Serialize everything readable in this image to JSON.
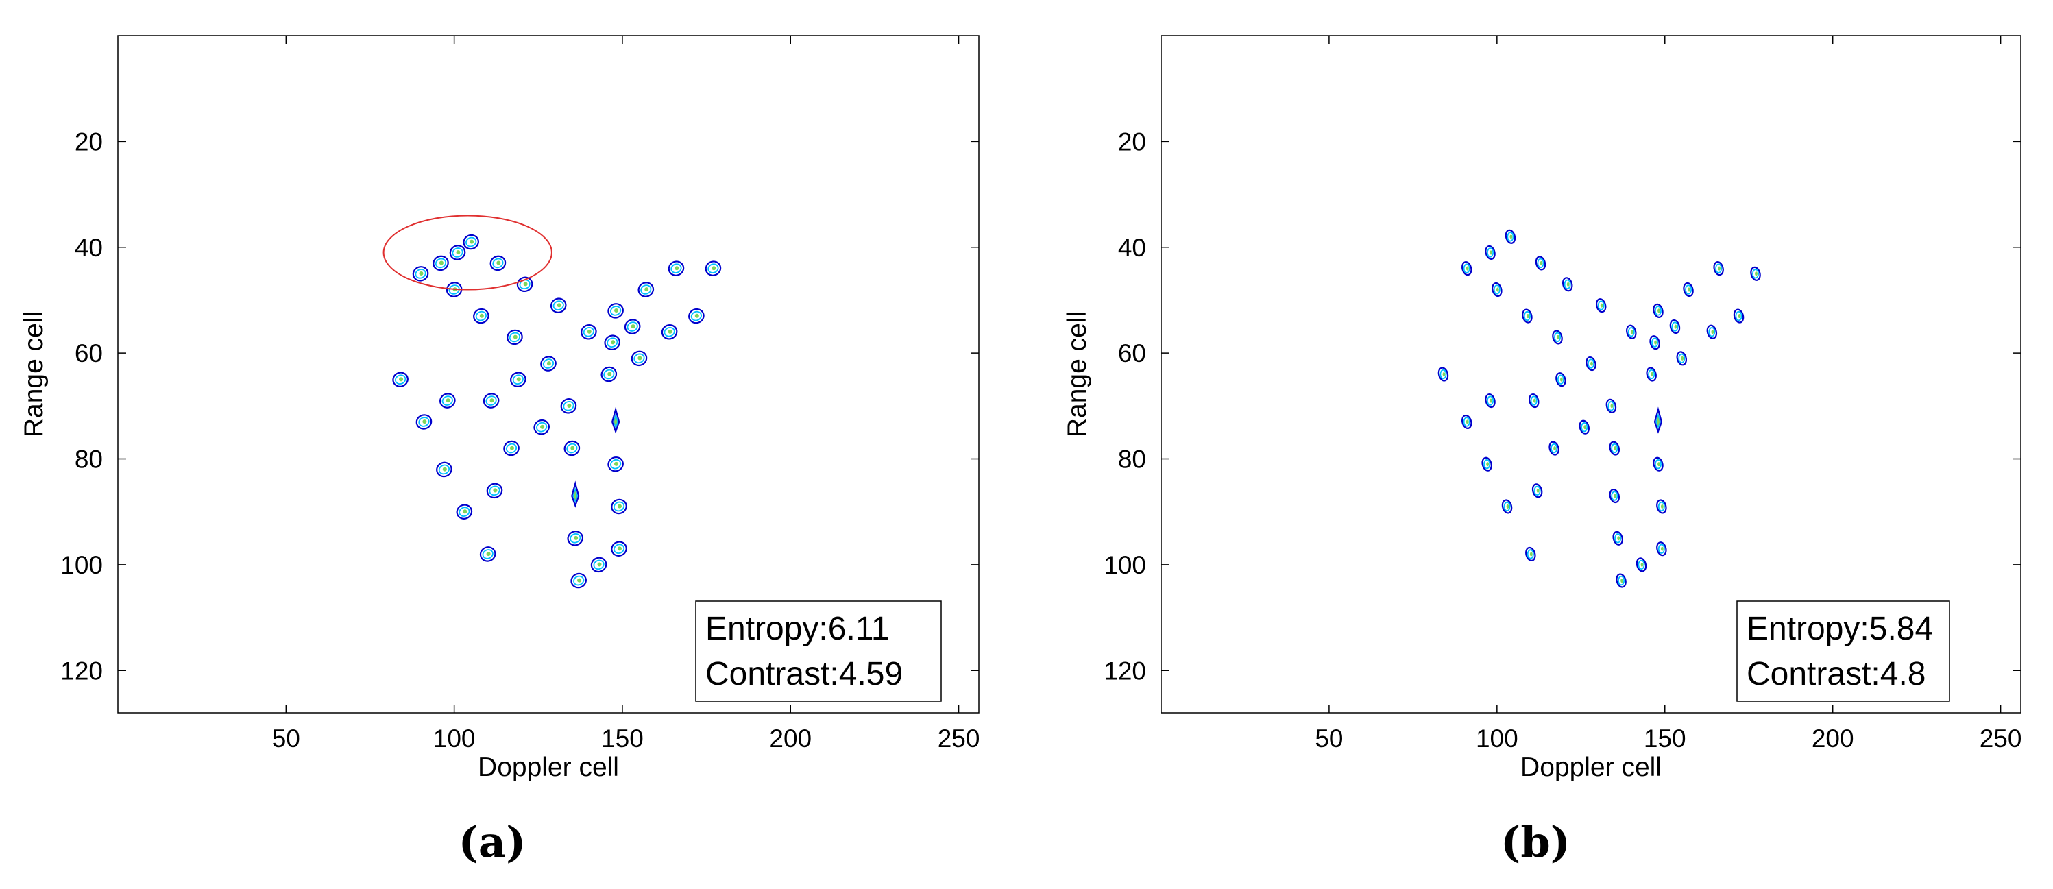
{
  "chart_data": [
    {
      "type": "scatter",
      "panel_label": "(a)",
      "xlabel": "Doppler cell",
      "ylabel": "Range cell",
      "xlim": [
        0,
        256
      ],
      "ylim": [
        128,
        0
      ],
      "xticks": [
        50,
        100,
        150,
        200,
        250
      ],
      "yticks": [
        20,
        40,
        60,
        80,
        100,
        120
      ],
      "y_axis_inverted": true,
      "grid": false,
      "contour_colors": [
        "#0000cc",
        "#00bfff",
        "#7fd65a"
      ],
      "annotation_lines": [
        "Entropy:6.11",
        "Contrast:4.59"
      ],
      "annotation_location": "bottom-right",
      "highlight_ellipse": {
        "center": [
          104,
          41
        ],
        "rx": 25,
        "ry": 7,
        "color": "#e03030"
      },
      "scatterers": [
        {
          "x": 90,
          "y": 45,
          "kind": "smear"
        },
        {
          "x": 96,
          "y": 43,
          "kind": "smear"
        },
        {
          "x": 101,
          "y": 41,
          "kind": "smear"
        },
        {
          "x": 105,
          "y": 39,
          "kind": "smear"
        },
        {
          "x": 113,
          "y": 43,
          "kind": "smear"
        },
        {
          "x": 100,
          "y": 48,
          "kind": "smear"
        },
        {
          "x": 108,
          "y": 53,
          "kind": "smear"
        },
        {
          "x": 121,
          "y": 47,
          "kind": "smear"
        },
        {
          "x": 131,
          "y": 51,
          "kind": "smear"
        },
        {
          "x": 118,
          "y": 57,
          "kind": "smear"
        },
        {
          "x": 140,
          "y": 56,
          "kind": "smear"
        },
        {
          "x": 148,
          "y": 52,
          "kind": "smear"
        },
        {
          "x": 157,
          "y": 48,
          "kind": "smear"
        },
        {
          "x": 166,
          "y": 44,
          "kind": "smear"
        },
        {
          "x": 177,
          "y": 44,
          "kind": "smear"
        },
        {
          "x": 128,
          "y": 62,
          "kind": "smear"
        },
        {
          "x": 147,
          "y": 58,
          "kind": "smear"
        },
        {
          "x": 153,
          "y": 55,
          "kind": "smear"
        },
        {
          "x": 164,
          "y": 56,
          "kind": "smear"
        },
        {
          "x": 172,
          "y": 53,
          "kind": "smear"
        },
        {
          "x": 155,
          "y": 61,
          "kind": "smear"
        },
        {
          "x": 84,
          "y": 65,
          "kind": "smear"
        },
        {
          "x": 119,
          "y": 65,
          "kind": "smear"
        },
        {
          "x": 146,
          "y": 64,
          "kind": "smear"
        },
        {
          "x": 98,
          "y": 69,
          "kind": "smear"
        },
        {
          "x": 111,
          "y": 69,
          "kind": "smear"
        },
        {
          "x": 134,
          "y": 70,
          "kind": "smear"
        },
        {
          "x": 91,
          "y": 73,
          "kind": "smear"
        },
        {
          "x": 126,
          "y": 74,
          "kind": "smear"
        },
        {
          "x": 148,
          "y": 73,
          "kind": "spike"
        },
        {
          "x": 117,
          "y": 78,
          "kind": "smear"
        },
        {
          "x": 135,
          "y": 78,
          "kind": "smear"
        },
        {
          "x": 97,
          "y": 82,
          "kind": "smear"
        },
        {
          "x": 148,
          "y": 81,
          "kind": "smear"
        },
        {
          "x": 112,
          "y": 86,
          "kind": "smear"
        },
        {
          "x": 136,
          "y": 87,
          "kind": "spike"
        },
        {
          "x": 103,
          "y": 90,
          "kind": "smear"
        },
        {
          "x": 149,
          "y": 89,
          "kind": "smear"
        },
        {
          "x": 136,
          "y": 95,
          "kind": "smear"
        },
        {
          "x": 110,
          "y": 98,
          "kind": "smear"
        },
        {
          "x": 149,
          "y": 97,
          "kind": "smear"
        },
        {
          "x": 143,
          "y": 100,
          "kind": "smear"
        },
        {
          "x": 137,
          "y": 103,
          "kind": "smear"
        }
      ]
    },
    {
      "type": "scatter",
      "panel_label": "(b)",
      "xlabel": "Doppler cell",
      "ylabel": "Range cell",
      "xlim": [
        0,
        256
      ],
      "ylim": [
        128,
        0
      ],
      "xticks": [
        50,
        100,
        150,
        200,
        250
      ],
      "yticks": [
        20,
        40,
        60,
        80,
        100,
        120
      ],
      "y_axis_inverted": true,
      "grid": false,
      "contour_colors": [
        "#0000cc",
        "#00bfff",
        "#7fd65a"
      ],
      "annotation_lines": [
        "Entropy:5.84",
        "Contrast:4.8"
      ],
      "annotation_location": "bottom-right",
      "scatterers": [
        {
          "x": 104,
          "y": 38,
          "kind": "dot"
        },
        {
          "x": 98,
          "y": 41,
          "kind": "dot"
        },
        {
          "x": 91,
          "y": 44,
          "kind": "dot"
        },
        {
          "x": 113,
          "y": 43,
          "kind": "dot"
        },
        {
          "x": 100,
          "y": 48,
          "kind": "dot"
        },
        {
          "x": 121,
          "y": 47,
          "kind": "dot"
        },
        {
          "x": 109,
          "y": 53,
          "kind": "dot"
        },
        {
          "x": 131,
          "y": 51,
          "kind": "dot"
        },
        {
          "x": 148,
          "y": 52,
          "kind": "dot"
        },
        {
          "x": 157,
          "y": 48,
          "kind": "dot"
        },
        {
          "x": 166,
          "y": 44,
          "kind": "dot"
        },
        {
          "x": 177,
          "y": 45,
          "kind": "dot"
        },
        {
          "x": 140,
          "y": 56,
          "kind": "dot"
        },
        {
          "x": 118,
          "y": 57,
          "kind": "dot"
        },
        {
          "x": 153,
          "y": 55,
          "kind": "dot"
        },
        {
          "x": 164,
          "y": 56,
          "kind": "dot"
        },
        {
          "x": 172,
          "y": 53,
          "kind": "dot"
        },
        {
          "x": 147,
          "y": 58,
          "kind": "dot"
        },
        {
          "x": 155,
          "y": 61,
          "kind": "dot"
        },
        {
          "x": 128,
          "y": 62,
          "kind": "dot"
        },
        {
          "x": 84,
          "y": 64,
          "kind": "dot"
        },
        {
          "x": 119,
          "y": 65,
          "kind": "dot"
        },
        {
          "x": 146,
          "y": 64,
          "kind": "dot"
        },
        {
          "x": 98,
          "y": 69,
          "kind": "dot"
        },
        {
          "x": 111,
          "y": 69,
          "kind": "dot"
        },
        {
          "x": 134,
          "y": 70,
          "kind": "dot"
        },
        {
          "x": 91,
          "y": 73,
          "kind": "dot"
        },
        {
          "x": 126,
          "y": 74,
          "kind": "dot"
        },
        {
          "x": 148,
          "y": 73,
          "kind": "spike"
        },
        {
          "x": 117,
          "y": 78,
          "kind": "dot"
        },
        {
          "x": 135,
          "y": 78,
          "kind": "dot"
        },
        {
          "x": 97,
          "y": 81,
          "kind": "dot"
        },
        {
          "x": 148,
          "y": 81,
          "kind": "dot"
        },
        {
          "x": 112,
          "y": 86,
          "kind": "dot"
        },
        {
          "x": 135,
          "y": 87,
          "kind": "dot"
        },
        {
          "x": 103,
          "y": 89,
          "kind": "dot"
        },
        {
          "x": 149,
          "y": 89,
          "kind": "dot"
        },
        {
          "x": 136,
          "y": 95,
          "kind": "dot"
        },
        {
          "x": 110,
          "y": 98,
          "kind": "dot"
        },
        {
          "x": 149,
          "y": 97,
          "kind": "dot"
        },
        {
          "x": 143,
          "y": 100,
          "kind": "dot"
        },
        {
          "x": 137,
          "y": 103,
          "kind": "dot"
        }
      ]
    }
  ]
}
